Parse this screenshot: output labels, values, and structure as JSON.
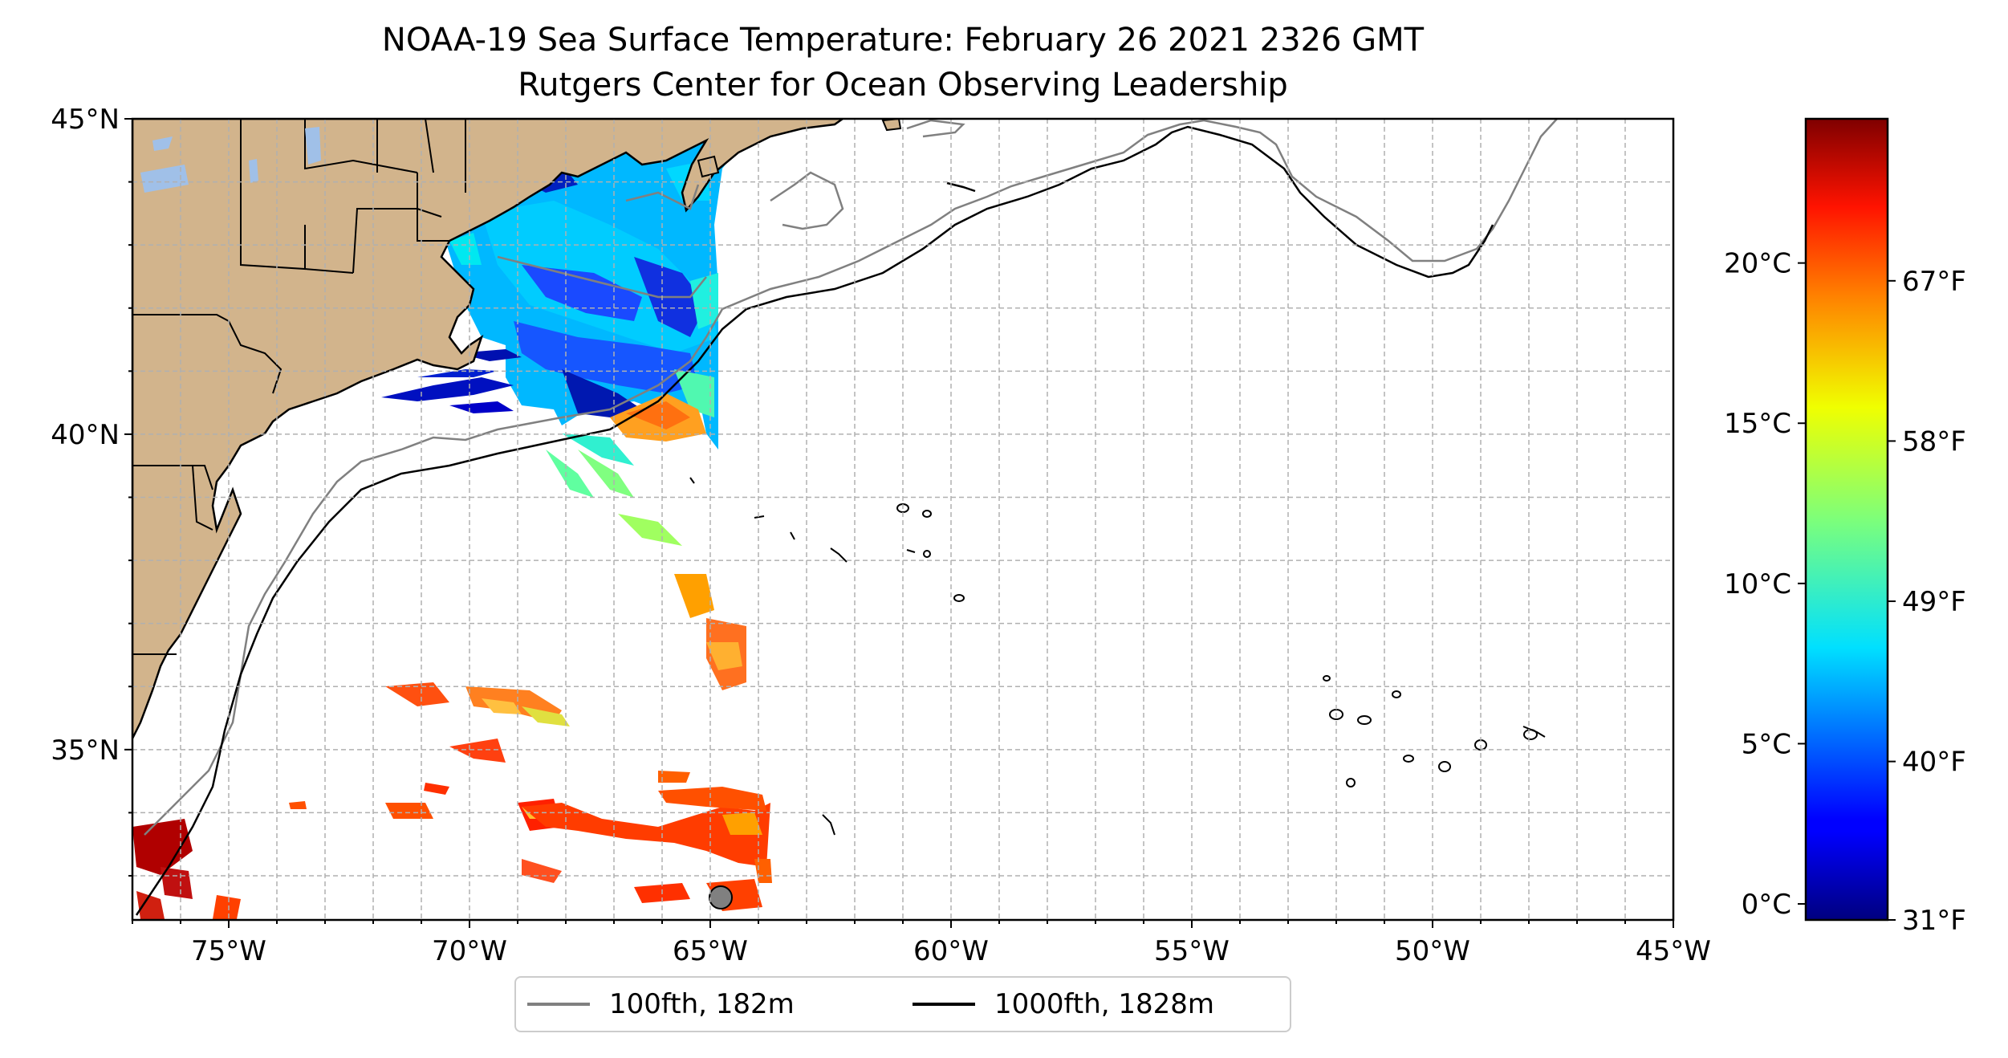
{
  "title": "NOAA-19 Sea Surface Temperature: February 26 2021 2326 GMT",
  "subtitle": "Rutgers Center for Ocean Observing Leadership",
  "map": {
    "extent": {
      "lon": [
        -77,
        -45
      ],
      "lat": [
        32.3,
        45
      ]
    },
    "lat_ticks": [
      {
        "value": 45,
        "label": "45°N"
      },
      {
        "value": 40,
        "label": "40°N"
      },
      {
        "value": 35,
        "label": "35°N"
      }
    ],
    "lon_ticks": [
      {
        "value": -75,
        "label": "75°W"
      },
      {
        "value": -70,
        "label": "70°W"
      },
      {
        "value": -65,
        "label": "65°W"
      },
      {
        "value": -60,
        "label": "60°W"
      },
      {
        "value": -55,
        "label": "55°W"
      },
      {
        "value": -50,
        "label": "50°W"
      },
      {
        "value": -45,
        "label": "45°W"
      }
    ],
    "grid_spacing_deg": 1,
    "gridlines": true,
    "land_color": "#d2b48c",
    "lake_color": "#a0c0e8",
    "contour_100_color": "#808080",
    "contour_1000_color": "#000000"
  },
  "legend": {
    "position": "bottom-center",
    "items": [
      {
        "label": "100fth, 182m",
        "color": "#808080"
      },
      {
        "label": "1000fth, 1828m",
        "color": "#000000"
      }
    ]
  },
  "colorbar": {
    "colormap": "jet",
    "range_c": [
      -0.5,
      24.5
    ],
    "celsius_ticks": [
      {
        "value": 0,
        "label": "0°C"
      },
      {
        "value": 5,
        "label": "5°C"
      },
      {
        "value": 10,
        "label": "10°C"
      },
      {
        "value": 15,
        "label": "15°C"
      },
      {
        "value": 20,
        "label": "20°C"
      }
    ],
    "fahrenheit_ticks": [
      {
        "value": 31,
        "label": "31°F"
      },
      {
        "value": 40,
        "label": "40°F"
      },
      {
        "value": 49,
        "label": "49°F"
      },
      {
        "value": 58,
        "label": "58°F"
      },
      {
        "value": 67,
        "label": "67°F"
      }
    ]
  }
}
